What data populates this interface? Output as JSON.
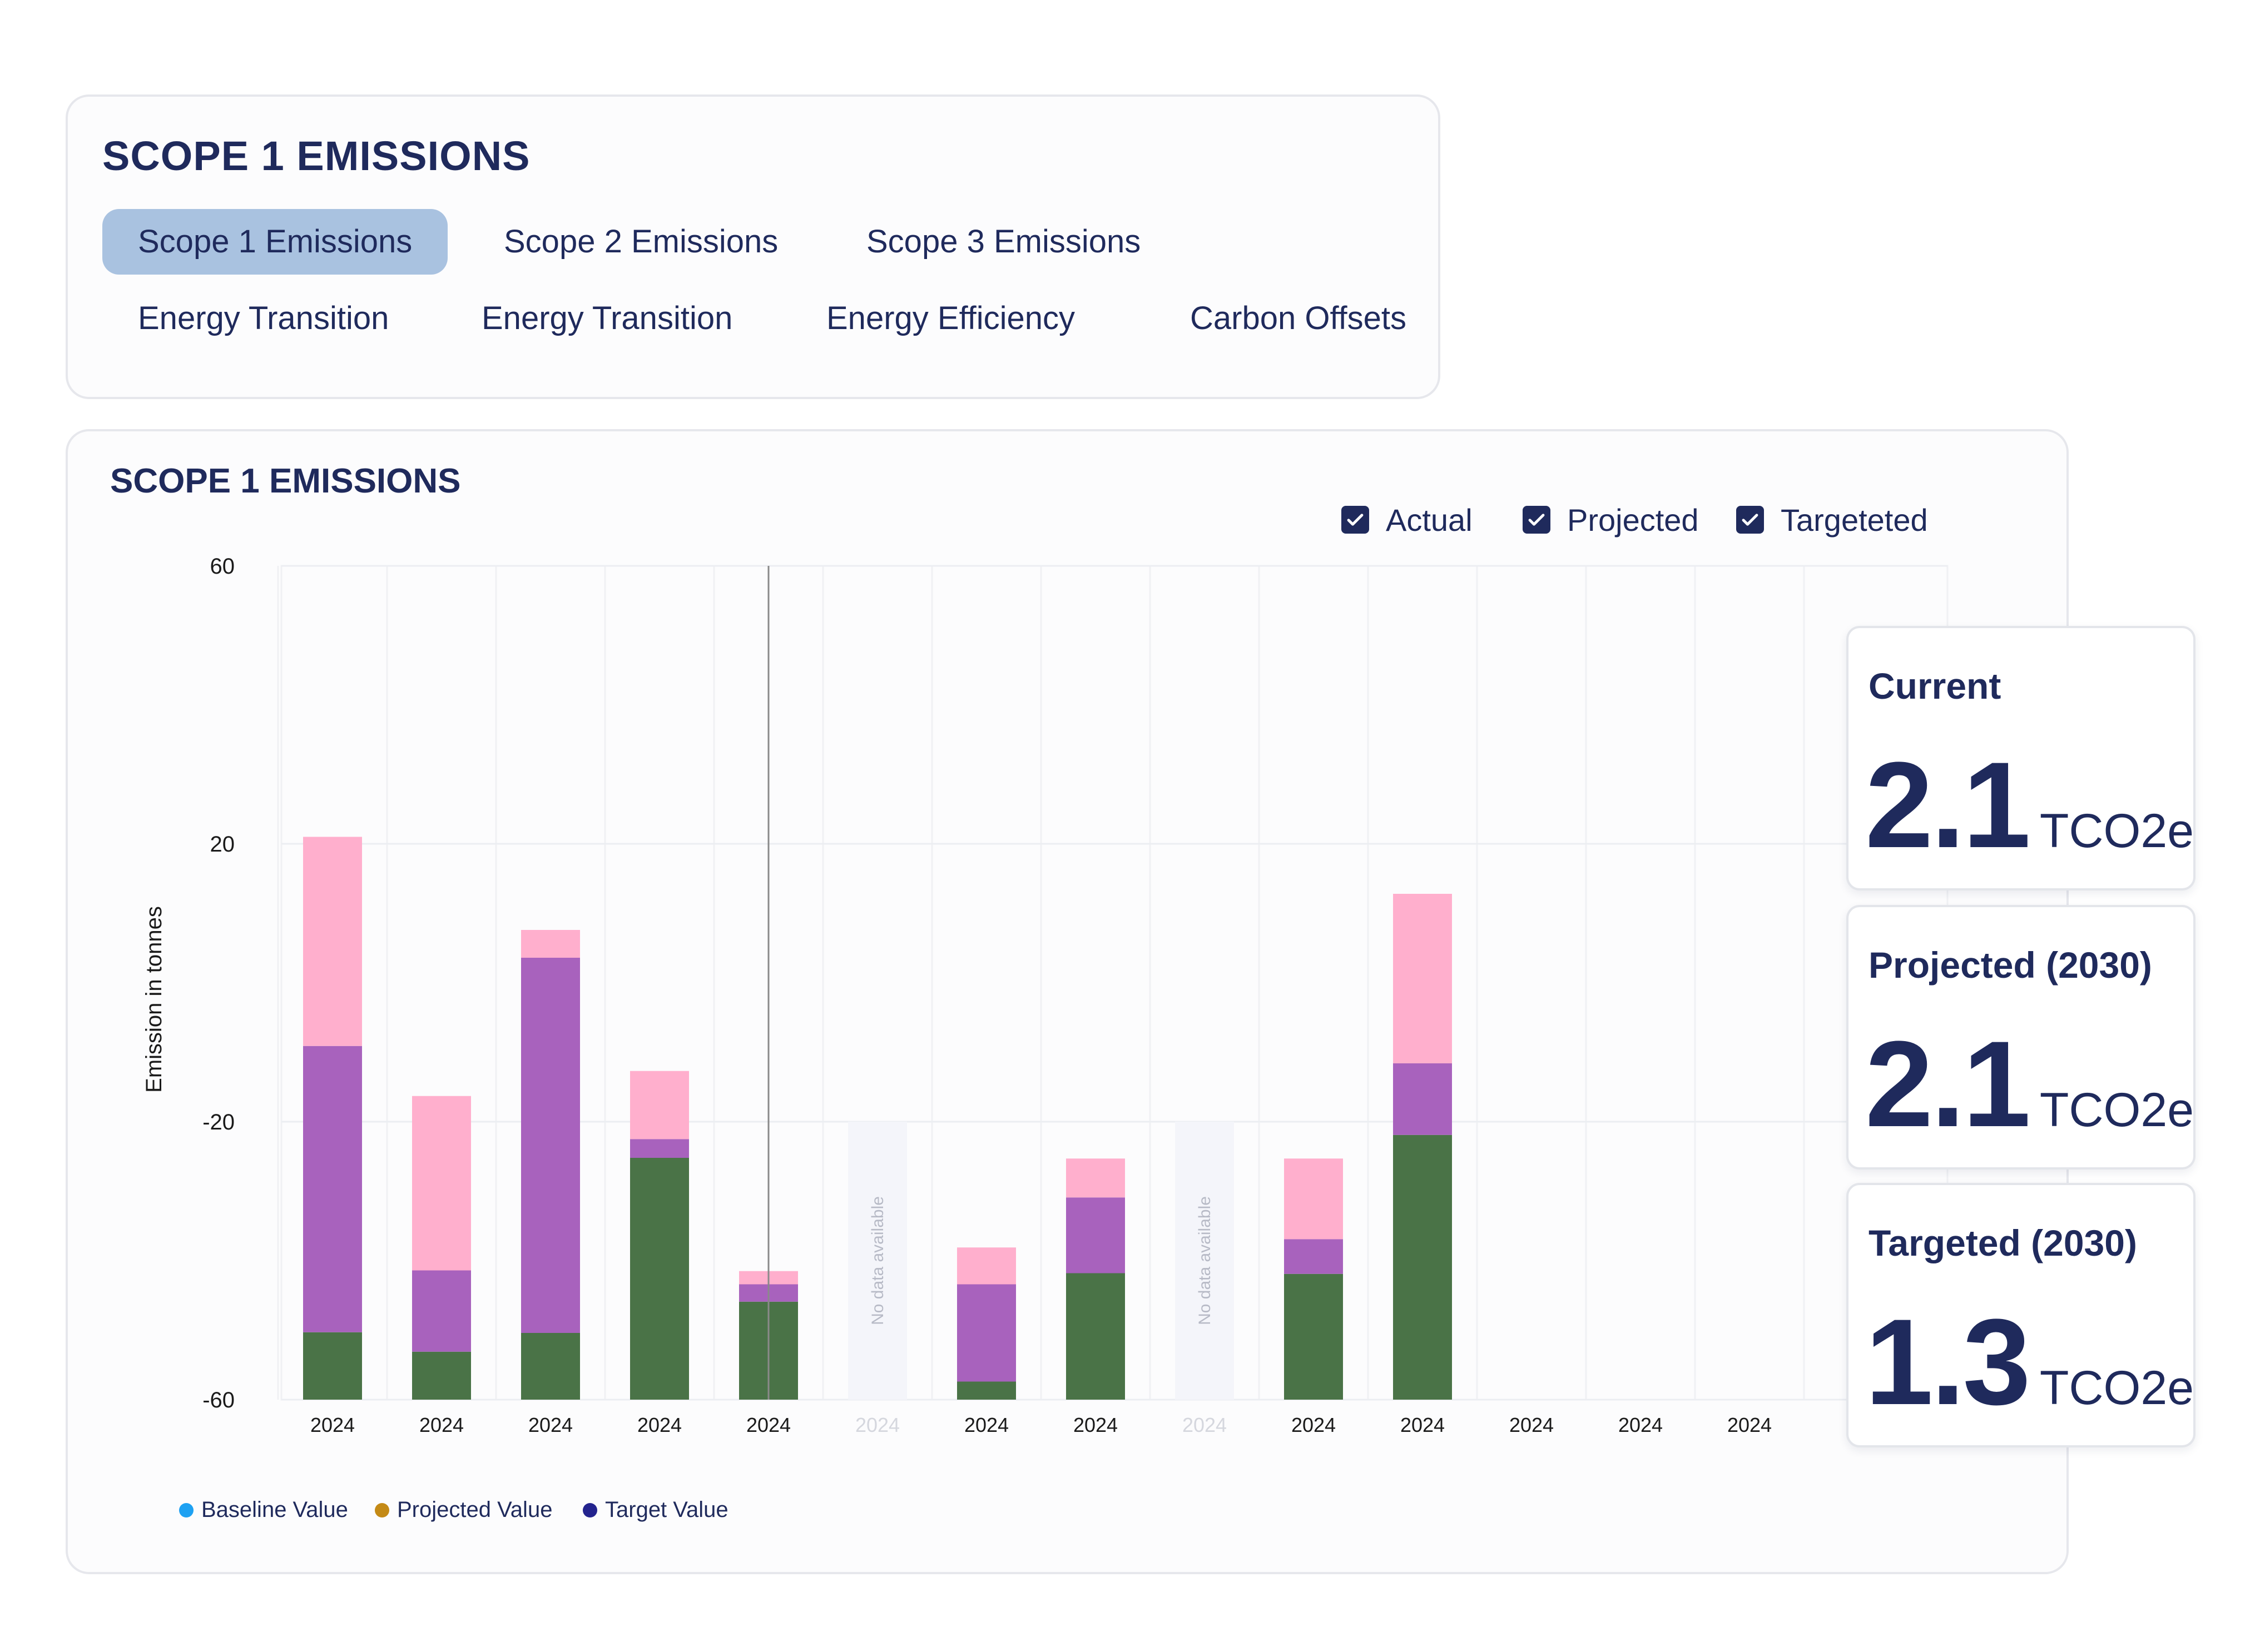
{
  "tabs_card": {
    "title": "SCOPE 1 EMISSIONS",
    "tabs": [
      {
        "label": "Scope 1 Emissions",
        "active": true
      },
      {
        "label": "Scope 2 Emissions",
        "active": false
      },
      {
        "label": "Scope 3 Emissions",
        "active": false
      },
      {
        "label": "Energy Transition",
        "active": false
      },
      {
        "label": "Energy Transition",
        "active": false
      },
      {
        "label": "Energy Efficiency",
        "active": false
      },
      {
        "label": "Carbon Offsets",
        "active": false
      }
    ]
  },
  "chart_card": {
    "title": "SCOPE 1 EMISSIONS",
    "toggles": [
      {
        "label": "Actual",
        "checked": true
      },
      {
        "label": "Projected",
        "checked": true
      },
      {
        "label": "Targeteted",
        "checked": true
      }
    ],
    "legend": [
      {
        "label": "Baseline Value",
        "color": "#1ea1f2"
      },
      {
        "label": "Projected Value",
        "color": "#c48a16"
      },
      {
        "label": "Target Value",
        "color": "#23238e"
      }
    ],
    "no_data_label": "No data available"
  },
  "stats": [
    {
      "label": "Current",
      "value": "2.1",
      "unit": "TCO2e"
    },
    {
      "label": "Projected (2030)",
      "value": "2.1",
      "unit": "TCO2e"
    },
    {
      "label": "Targeted (2030)",
      "value": "1.3",
      "unit": "TCO2e"
    }
  ],
  "chart_data": {
    "type": "bar",
    "stacked": true,
    "ylabel": "Emission in tonnes",
    "xlabel": "",
    "ylim": [
      -60,
      60
    ],
    "yticks": [
      60,
      20,
      -20,
      -60
    ],
    "grid": true,
    "categories": [
      "2024",
      "2024",
      "2024",
      "2024",
      "2024",
      "2024",
      "2024",
      "2024",
      "2024",
      "2024",
      "2024",
      "2024",
      "2024",
      "2024"
    ],
    "no_data": [
      false,
      false,
      false,
      false,
      false,
      true,
      false,
      false,
      true,
      false,
      false,
      false,
      false,
      false
    ],
    "series": [
      {
        "color": "#4a7347",
        "values": [
          -50.3,
          -53.1,
          -50.4,
          -25.2,
          -45.9,
          null,
          -57.4,
          -41.8,
          null,
          -41.9,
          -21.9,
          null,
          null,
          null
        ]
      },
      {
        "color": "#a862bd",
        "values": [
          41.2,
          11.7,
          54.0,
          2.7,
          2.5,
          null,
          14.0,
          10.9,
          null,
          5.0,
          10.3,
          null,
          null,
          null
        ]
      },
      {
        "color": "#ffafcd",
        "values": [
          30.1,
          25.1,
          4.0,
          9.8,
          1.9,
          null,
          5.3,
          5.6,
          null,
          11.6,
          24.4,
          null,
          null,
          null
        ]
      }
    ],
    "hover_index": 4
  }
}
